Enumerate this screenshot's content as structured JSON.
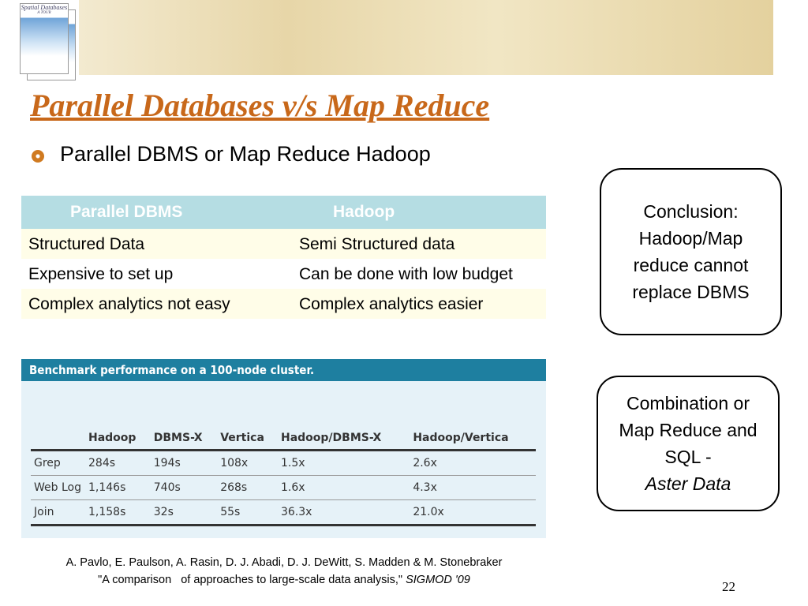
{
  "header": {
    "book_title": "Spatial Databases",
    "book_subtitle": "A TOUR",
    "title": "Parallel Databases v/s Map Reduce",
    "bullet": "Parallel DBMS or Map Reduce Hadoop"
  },
  "comparison_table": {
    "columns": [
      "Parallel DBMS",
      "Hadoop"
    ],
    "rows": [
      [
        "Structured Data",
        "Semi Structured data"
      ],
      [
        "Expensive to set up",
        "Can be done with low budget"
      ],
      [
        "Complex analytics not easy",
        "Complex analytics  easier"
      ]
    ]
  },
  "benchmark": {
    "caption": "Benchmark performance on a 100-node cluster.",
    "columns": [
      "Hadoop",
      "DBMS-X",
      "Vertica",
      "Hadoop/DBMS-X",
      "Hadoop/Vertica"
    ],
    "rows": [
      [
        "Grep",
        "284s",
        "194s",
        "108x",
        "1.5x",
        "2.6x"
      ],
      [
        "Web Log",
        "1,146s",
        "740s",
        "268s",
        "1.6x",
        "4.3x"
      ],
      [
        "Join",
        "1,158s",
        "32s",
        "55s",
        "36.3x",
        "21.0x"
      ]
    ]
  },
  "boxes": [
    {
      "text": "Conclusion: Hadoop/Map reduce cannot replace DBMS"
    },
    {
      "text": "Combination or Map Reduce and SQL  -",
      "emphasis": "Aster Data"
    }
  ],
  "citation": {
    "authors": "A. Pavlo, E. Paulson, A. Rasin, D. J. Abadi, D. J. DeWitt, S. Madden & M. Stonebraker",
    "title": "\"A comparison   of approaches to large-scale data analysis,\"",
    "venue": "SIGMOD '09"
  },
  "page_number": "22"
}
